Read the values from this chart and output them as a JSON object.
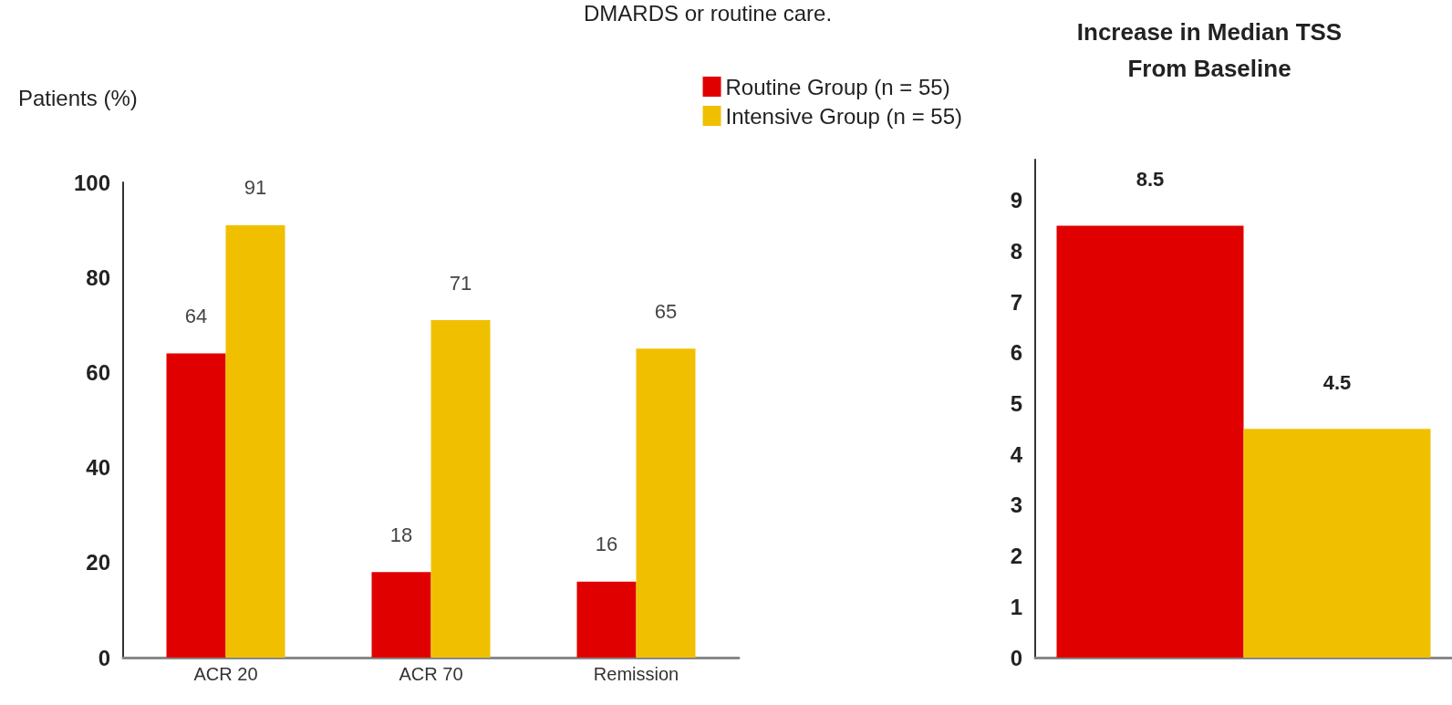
{
  "chart_data": [
    {
      "type": "bar",
      "annotations": [
        "DMARDS or routine care."
      ],
      "ylabel": "Patients (%)",
      "categories": [
        "ACR 20",
        "ACR 70",
        "Remission"
      ],
      "series": [
        {
          "name": "Routine Group (n = 55)",
          "color": "#e00000",
          "values": [
            64,
            18,
            16
          ]
        },
        {
          "name": "Intensive Group (n = 55)",
          "color": "#f0c000",
          "values": [
            91,
            71,
            65
          ]
        }
      ],
      "ylim": [
        0,
        100
      ],
      "yticks": [
        0,
        20,
        40,
        60,
        80,
        100
      ],
      "data_labels": true,
      "legend": "top right",
      "grid": false
    },
    {
      "type": "bar",
      "title": "Increase in Median TSS\nFrom Baseline",
      "categories": [
        null
      ],
      "series": [
        {
          "color": "#e00000",
          "values": [
            8.5
          ]
        },
        {
          "color": "#f0c000",
          "values": [
            4.5
          ]
        }
      ],
      "ylim": [
        0,
        9.8
      ],
      "yticks": [
        0,
        1,
        2,
        3,
        4,
        5,
        6,
        7,
        8,
        9
      ],
      "data_labels": true,
      "grid": false
    }
  ]
}
